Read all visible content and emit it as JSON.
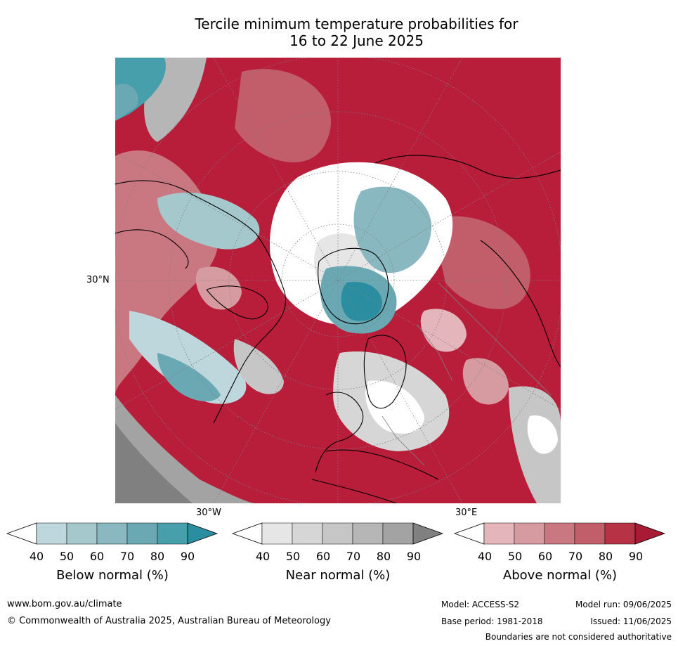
{
  "title_line1": "Tercile minimum temperature probabilities for",
  "title_line2": "16 to 22 June 2025",
  "map_labels": {
    "lat_30n": "30°N",
    "lon_30w": "30°W",
    "lon_30e": "30°E"
  },
  "colors": {
    "below": [
      "#bdd7dc",
      "#a5c8cd",
      "#8ab8c1",
      "#6aa9b4",
      "#489fac",
      "#2b8ea0"
    ],
    "near": [
      "#e6e6e6",
      "#d6d6d6",
      "#c6c6c6",
      "#b6b6b6",
      "#a3a3a3",
      "#808080"
    ],
    "above": [
      "#e4b5bb",
      "#d69aa1",
      "#c97780",
      "#c25d6a",
      "#b73245",
      "#a81b35"
    ],
    "ocean_red": "#b81d3a",
    "land_line": "#000000",
    "border_line": "#808080"
  },
  "colorbars": [
    {
      "name": "below",
      "label": "Below normal (%)",
      "ticks": [
        "40",
        "50",
        "60",
        "70",
        "80",
        "90"
      ]
    },
    {
      "name": "near",
      "label": "Near normal (%)",
      "ticks": [
        "40",
        "50",
        "60",
        "70",
        "80",
        "90"
      ]
    },
    {
      "name": "above",
      "label": "Above normal (%)",
      "ticks": [
        "40",
        "50",
        "60",
        "70",
        "80",
        "90"
      ]
    }
  ],
  "footer": {
    "website": "www.bom.gov.au/climate",
    "copyright": "© Commonwealth of Australia 2025, Australian Bureau of Meteorology",
    "model": "Model: ACCESS-S2",
    "base_period": "Base period: 1981-2018",
    "model_run": "Model run: 09/06/2025",
    "issued": "Issued: 11/06/2025",
    "disclaimer": "Boundaries are not considered authoritative"
  }
}
